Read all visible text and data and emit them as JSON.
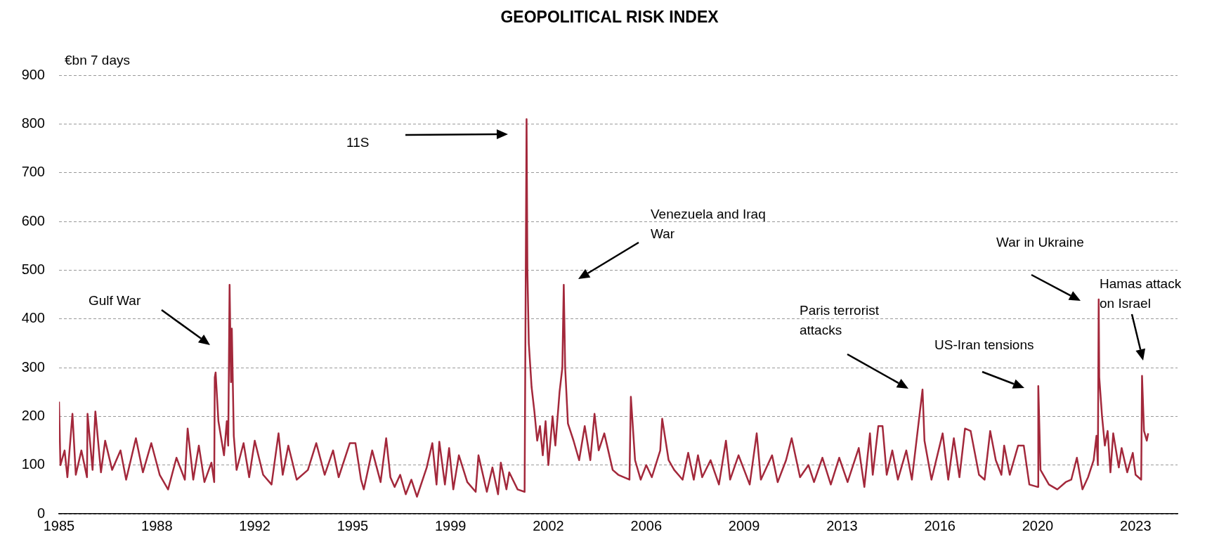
{
  "chart_data": {
    "type": "line",
    "title": "GEOPOLITICAL RISK INDEX",
    "ylabel": "€bn 7 days",
    "xlim": [
      1985,
      2025
    ],
    "xticks": [
      {
        "value": 1985,
        "label": "1985"
      },
      {
        "value": 1988.5,
        "label": "1988"
      },
      {
        "value": 1992,
        "label": "1992"
      },
      {
        "value": 1995.5,
        "label": "1995"
      },
      {
        "value": 1999,
        "label": "1999"
      },
      {
        "value": 2002.5,
        "label": "2002"
      },
      {
        "value": 2006,
        "label": "2006"
      },
      {
        "value": 2009.5,
        "label": "2009"
      },
      {
        "value": 2013,
        "label": "2013"
      },
      {
        "value": 2016.5,
        "label": "2016"
      },
      {
        "value": 2020,
        "label": "2020"
      },
      {
        "value": 2023.5,
        "label": "2023"
      }
    ],
    "ylim": [
      0,
      900
    ],
    "yticks": [
      0,
      100,
      200,
      300,
      400,
      500,
      600,
      700,
      800,
      900
    ],
    "grid": "y",
    "legend": false,
    "marker": "none",
    "line_style": "solid",
    "x": [
      1985.0,
      1985.05,
      1985.2,
      1985.3,
      1985.48,
      1985.6,
      1985.8,
      1986.0,
      1986.02,
      1986.2,
      1986.3,
      1986.5,
      1986.65,
      1986.9,
      1987.2,
      1987.4,
      1987.75,
      1988.0,
      1988.3,
      1988.6,
      1988.9,
      1989.2,
      1989.5,
      1989.6,
      1989.8,
      1990.0,
      1990.2,
      1990.45,
      1990.55,
      1990.57,
      1990.6,
      1990.7,
      1990.9,
      1991.0,
      1991.05,
      1991.1,
      1991.15,
      1991.18,
      1991.25,
      1991.35,
      1991.6,
      1991.8,
      1992.0,
      1992.3,
      1992.6,
      1992.85,
      1993.0,
      1993.2,
      1993.5,
      1993.9,
      1994.2,
      1994.5,
      1994.8,
      1995.0,
      1995.4,
      1995.6,
      1995.8,
      1995.9,
      1996.2,
      1996.5,
      1996.7,
      1996.85,
      1997.0,
      1997.2,
      1997.4,
      1997.6,
      1997.8,
      1998.15,
      1998.35,
      1998.5,
      1998.6,
      1998.8,
      1998.95,
      1999.1,
      1999.3,
      1999.6,
      1999.9,
      2000.0,
      2000.3,
      2000.5,
      2000.7,
      2000.8,
      2001.0,
      2001.1,
      2001.4,
      2001.65,
      2001.72,
      2001.75,
      2001.8,
      2001.9,
      2002.0,
      2002.1,
      2002.2,
      2002.3,
      2002.4,
      2002.5,
      2002.65,
      2002.75,
      2002.9,
      2003.0,
      2003.05,
      2003.1,
      2003.2,
      2003.4,
      2003.6,
      2003.8,
      2004.0,
      2004.15,
      2004.3,
      2004.5,
      2004.8,
      2005.0,
      2005.4,
      2005.45,
      2005.6,
      2005.8,
      2006.0,
      2006.2,
      2006.5,
      2006.57,
      2006.8,
      2007.0,
      2007.3,
      2007.5,
      2007.7,
      2007.85,
      2008.0,
      2008.3,
      2008.6,
      2008.85,
      2009.0,
      2009.3,
      2009.7,
      2009.95,
      2010.1,
      2010.5,
      2010.7,
      2011.0,
      2011.2,
      2011.5,
      2011.8,
      2012.0,
      2012.3,
      2012.6,
      2012.9,
      2013.2,
      2013.6,
      2013.8,
      2014.0,
      2014.1,
      2014.3,
      2014.45,
      2014.6,
      2014.8,
      2015.0,
      2015.3,
      2015.5,
      2015.88,
      2015.95,
      2016.2,
      2016.6,
      2016.8,
      2017.0,
      2017.2,
      2017.4,
      2017.6,
      2017.9,
      2018.1,
      2018.3,
      2018.5,
      2018.7,
      2018.8,
      2019.0,
      2019.3,
      2019.5,
      2019.7,
      2020.0,
      2020.02,
      2020.1,
      2020.4,
      2020.7,
      2021.0,
      2021.2,
      2021.4,
      2021.6,
      2021.8,
      2022.0,
      2022.1,
      2022.15,
      2022.18,
      2022.2,
      2022.3,
      2022.4,
      2022.5,
      2022.6,
      2022.7,
      2022.9,
      2023.0,
      2023.2,
      2023.4,
      2023.5,
      2023.7,
      2023.73,
      2023.8,
      2023.9,
      2023.95
    ],
    "series": [
      {
        "color": "#a3283b",
        "values": [
          230,
          100,
          130,
          75,
          205,
          80,
          130,
          75,
          205,
          90,
          210,
          85,
          150,
          90,
          130,
          70,
          155,
          85,
          145,
          80,
          50,
          115,
          70,
          175,
          70,
          140,
          65,
          105,
          65,
          280,
          290,
          190,
          120,
          190,
          140,
          470,
          270,
          380,
          160,
          90,
          145,
          75,
          150,
          80,
          60,
          165,
          80,
          140,
          70,
          90,
          145,
          80,
          130,
          75,
          145,
          145,
          70,
          50,
          130,
          65,
          155,
          75,
          55,
          80,
          40,
          70,
          35,
          95,
          145,
          60,
          148,
          60,
          135,
          50,
          120,
          65,
          45,
          120,
          45,
          95,
          40,
          105,
          50,
          85,
          50,
          45,
          810,
          500,
          350,
          260,
          210,
          150,
          180,
          120,
          190,
          100,
          200,
          140,
          250,
          300,
          470,
          300,
          185,
          150,
          110,
          180,
          110,
          205,
          130,
          165,
          90,
          80,
          70,
          240,
          110,
          70,
          100,
          75,
          130,
          195,
          110,
          90,
          70,
          125,
          70,
          120,
          75,
          110,
          60,
          150,
          70,
          120,
          60,
          165,
          70,
          120,
          65,
          110,
          155,
          75,
          100,
          65,
          115,
          60,
          115,
          65,
          135,
          55,
          165,
          80,
          180,
          180,
          80,
          130,
          70,
          130,
          70,
          255,
          150,
          70,
          165,
          70,
          155,
          75,
          175,
          170,
          80,
          70,
          170,
          110,
          80,
          140,
          80,
          140,
          140,
          60,
          55,
          262,
          90,
          60,
          50,
          65,
          70,
          115,
          50,
          75,
          110,
          160,
          100,
          440,
          280,
          200,
          140,
          170,
          85,
          165,
          95,
          135,
          85,
          125,
          80,
          70,
          283,
          170,
          150,
          165
        ]
      }
    ],
    "annotations": [
      "Gulf War",
      "11S",
      "Venezuela and Iraq War",
      "Paris terrorist attacks",
      "US-Iran tensions",
      "War in Ukraine",
      "Hamas attack on Israel"
    ]
  }
}
